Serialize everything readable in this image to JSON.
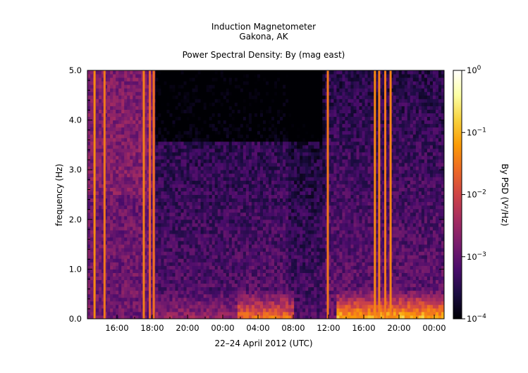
{
  "chart_data": {
    "type": "heatmap",
    "title": "Induction Magnetometer",
    "subtitle": "Gakona, AK",
    "plot_title": "Power Spectral Density: By (mag east)",
    "xlabel": "22–24 April 2012 (UTC)",
    "ylabel": "frequency (Hz)",
    "x_tick_labels": [
      "16:00",
      "18:00",
      "20:00",
      "00:00",
      "04:00",
      "08:00",
      "12:00",
      "16:00",
      "20:00",
      "00:00"
    ],
    "y_tick_labels": [
      "0.0",
      "1.0",
      "2.0",
      "3.0",
      "4.0",
      "5.0"
    ],
    "ylim": [
      0,
      5
    ],
    "colorbar": {
      "label": "By PSD (V²/Hz)",
      "scale": "log",
      "range": [
        0.0001,
        1
      ],
      "tick_labels": [
        {
          "base": "10",
          "exp": "−4",
          "value": 0.0001
        },
        {
          "base": "10",
          "exp": "−3",
          "value": 0.001
        },
        {
          "base": "10",
          "exp": "−2",
          "value": 0.01
        },
        {
          "base": "10",
          "exp": "−1",
          "value": 0.1
        },
        {
          "base": "10",
          "exp": "0",
          "value": 1
        }
      ],
      "colormap": [
        "#000004",
        "#1b0c41",
        "#4a0c6b",
        "#781c6d",
        "#a52c60",
        "#cf4446",
        "#ed6925",
        "#fb9b06",
        "#f7d13d",
        "#fcffa4",
        "#ffffff"
      ]
    },
    "bright_bands": [
      {
        "t": 0.02,
        "level": 0.95
      },
      {
        "t": 0.048,
        "level": 0.9
      },
      {
        "t": 0.158,
        "level": 0.92
      },
      {
        "t": 0.175,
        "level": 0.85
      },
      {
        "t": 0.186,
        "level": 0.88
      },
      {
        "t": 0.674,
        "level": 0.9
      },
      {
        "t": 0.806,
        "level": 0.95
      },
      {
        "t": 0.818,
        "level": 0.92
      },
      {
        "t": 0.835,
        "level": 0.9
      },
      {
        "t": 0.85,
        "level": 0.93
      }
    ]
  }
}
